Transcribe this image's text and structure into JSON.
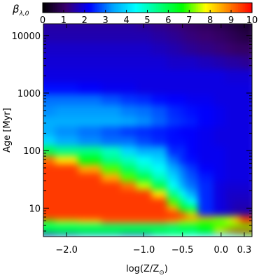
{
  "chart_data": {
    "type": "heatmap",
    "colorbar": {
      "label": "β",
      "label_sub": "λ,0",
      "min": 0,
      "max": 10,
      "ticks": [
        "0",
        "1",
        "2",
        "3",
        "4",
        "5",
        "6",
        "7",
        "8",
        "9",
        "10"
      ],
      "palette": [
        "#000000",
        "#3a0070",
        "#0000ff",
        "#00a0ff",
        "#00ffff",
        "#00ff80",
        "#00ff00",
        "#ffff00",
        "#ff8000",
        "#ff0000"
      ]
    },
    "xlabel": "log(Z/Z",
    "xlabel_sub": "⊙",
    "xlabel_end": ")",
    "ylabel_main": "Age ",
    "ylabel_unit": "[Myr]",
    "x_range": [
      -2.3,
      0.4
    ],
    "y_range": [
      3.2,
      16000
    ],
    "y_scale": "log",
    "x_ticks": [
      {
        "value": -2.0,
        "label": "−2.0"
      },
      {
        "value": -1.0,
        "label": "−1.0"
      },
      {
        "value": -0.5,
        "label": "−0.5"
      },
      {
        "value": 0.0,
        "label": "0.0"
      },
      {
        "value": 0.3,
        "label": "0.3"
      }
    ],
    "y_ticks": [
      {
        "value": 10,
        "label": "10"
      },
      {
        "value": 100,
        "label": "100"
      },
      {
        "value": 1000,
        "label": "1000"
      },
      {
        "value": 10000,
        "label": "10000"
      }
    ],
    "x_values": [
      -2.3,
      -2.0,
      -1.7,
      -1.4,
      -1.2,
      -1.0,
      -0.8,
      -0.6,
      -0.5,
      -0.4,
      -0.2,
      0.0,
      0.1,
      0.2,
      0.3,
      0.4
    ],
    "y_values": [
      3.5,
      4,
      5,
      6,
      7,
      8,
      10,
      13,
      18,
      25,
      35,
      50,
      70,
      100,
      150,
      220,
      320,
      500,
      800,
      1200,
      2000,
      3500,
      6000,
      10000,
      16000
    ],
    "values": [
      [
        2.5,
        3.0,
        3.5,
        3.5,
        3.0,
        3.0,
        4.0,
        5.0,
        5.0,
        4.5,
        4.0,
        4.0,
        4.5,
        5.0,
        5.5,
        6.0
      ],
      [
        6.5,
        6.5,
        6.5,
        6.5,
        6.5,
        6.5,
        6.5,
        6.0,
        6.0,
        6.0,
        6.5,
        8.0,
        9.0,
        9.5,
        9.5,
        9.5
      ],
      [
        5.5,
        5.5,
        5.5,
        5.5,
        5.5,
        5.5,
        5.5,
        5.5,
        6.0,
        6.0,
        6.5,
        7.0,
        7.0,
        7.0,
        7.0,
        7.0
      ],
      [
        7.0,
        7.5,
        8.0,
        9.0,
        9.0,
        9.0,
        9.0,
        8.5,
        7.5,
        7.5,
        7.0,
        7.0,
        7.5,
        8.5,
        9.5,
        9.5
      ],
      [
        9.5,
        9.5,
        9.5,
        9.5,
        9.5,
        9.5,
        9.5,
        9.5,
        9.5,
        9.0,
        8.5,
        7.5,
        7.5,
        8.0,
        9.5,
        9.5
      ],
      [
        9.5,
        9.5,
        9.5,
        9.5,
        9.5,
        9.5,
        9.5,
        9.5,
        9.0,
        7.5,
        2.5,
        2.0,
        1.8,
        1.5,
        1.5,
        1.5
      ],
      [
        9.5,
        9.5,
        9.5,
        9.5,
        9.5,
        9.5,
        9.5,
        8.5,
        6.5,
        6.0,
        2.5,
        2.0,
        1.8,
        1.6,
        1.6,
        1.6
      ],
      [
        9.5,
        9.5,
        9.5,
        9.5,
        9.5,
        9.5,
        9.5,
        7.0,
        5.5,
        4.5,
        2.5,
        2.0,
        1.8,
        1.7,
        1.7,
        1.7
      ],
      [
        9.5,
        9.5,
        9.5,
        9.5,
        9.5,
        9.5,
        8.0,
        5.5,
        4.5,
        3.5,
        2.5,
        2.0,
        1.8,
        1.8,
        1.8,
        1.8
      ],
      [
        9.5,
        9.5,
        9.5,
        9.5,
        9.0,
        7.5,
        6.0,
        4.5,
        3.5,
        3.0,
        2.5,
        2.0,
        1.9,
        1.9,
        1.9,
        1.9
      ],
      [
        9.5,
        9.5,
        9.5,
        8.5,
        7.0,
        6.0,
        5.0,
        4.0,
        3.2,
        2.8,
        2.4,
        2.1,
        2.0,
        2.0,
        2.0,
        2.0
      ],
      [
        9.5,
        9.5,
        8.5,
        7.0,
        5.8,
        5.0,
        4.5,
        3.5,
        3.0,
        2.6,
        2.2,
        2.1,
        2.0,
        2.0,
        2.0,
        2.0
      ],
      [
        9.0,
        8.0,
        6.5,
        5.5,
        5.0,
        4.5,
        4.0,
        3.0,
        2.5,
        2.3,
        2.1,
        2.1,
        2.0,
        2.0,
        2.0,
        2.0
      ],
      [
        6.0,
        5.5,
        5.5,
        5.0,
        4.0,
        3.5,
        3.5,
        2.5,
        2.5,
        2.2,
        2.1,
        2.1,
        2.0,
        2.0,
        2.0,
        2.0
      ],
      [
        4.0,
        3.5,
        3.2,
        3.0,
        3.0,
        2.7,
        2.5,
        2.3,
        2.3,
        2.2,
        2.1,
        2.0,
        2.0,
        2.0,
        2.0,
        2.0
      ],
      [
        3.5,
        3.2,
        3.0,
        2.8,
        2.6,
        2.5,
        2.4,
        2.3,
        2.2,
        2.2,
        2.1,
        2.0,
        2.0,
        2.0,
        2.0,
        2.0
      ],
      [
        3.5,
        3.5,
        3.5,
        3.5,
        3.4,
        3.2,
        2.9,
        2.6,
        2.5,
        2.4,
        2.2,
        2.1,
        2.0,
        2.0,
        2.0,
        2.0
      ],
      [
        3.2,
        3.3,
        3.3,
        3.3,
        3.1,
        3.0,
        2.8,
        2.5,
        2.4,
        2.3,
        2.2,
        2.1,
        2.0,
        2.0,
        2.0,
        2.0
      ],
      [
        3.0,
        3.0,
        3.0,
        2.8,
        2.6,
        2.5,
        2.3,
        2.2,
        2.2,
        2.1,
        2.1,
        2.0,
        2.0,
        2.0,
        2.0,
        2.0
      ],
      [
        2.3,
        2.3,
        2.2,
        2.1,
        2.1,
        2.0,
        2.0,
        2.0,
        2.0,
        2.0,
        2.0,
        2.0,
        2.0,
        2.0,
        2.0,
        2.0
      ],
      [
        2.0,
        2.0,
        2.0,
        2.0,
        2.0,
        2.0,
        2.0,
        2.0,
        2.0,
        2.0,
        2.0,
        2.0,
        1.9,
        1.9,
        1.9,
        1.9
      ],
      [
        1.9,
        1.9,
        1.9,
        1.9,
        1.9,
        1.9,
        1.9,
        1.8,
        1.8,
        1.8,
        1.7,
        1.6,
        1.5,
        1.5,
        1.4,
        1.4
      ],
      [
        1.8,
        1.8,
        1.8,
        1.8,
        1.8,
        1.8,
        1.7,
        1.6,
        1.5,
        1.4,
        1.3,
        1.2,
        1.1,
        1.0,
        1.0,
        1.0
      ],
      [
        1.6,
        1.6,
        1.6,
        1.6,
        1.6,
        1.6,
        1.5,
        1.4,
        1.3,
        1.2,
        1.1,
        1.0,
        0.9,
        0.8,
        0.7,
        0.7
      ],
      [
        1.5,
        1.5,
        1.5,
        1.5,
        1.5,
        1.4,
        1.3,
        1.2,
        1.1,
        1.0,
        0.9,
        0.8,
        0.7,
        0.6,
        0.5,
        0.5
      ]
    ],
    "grid": false,
    "legend": "colorbar-top"
  }
}
